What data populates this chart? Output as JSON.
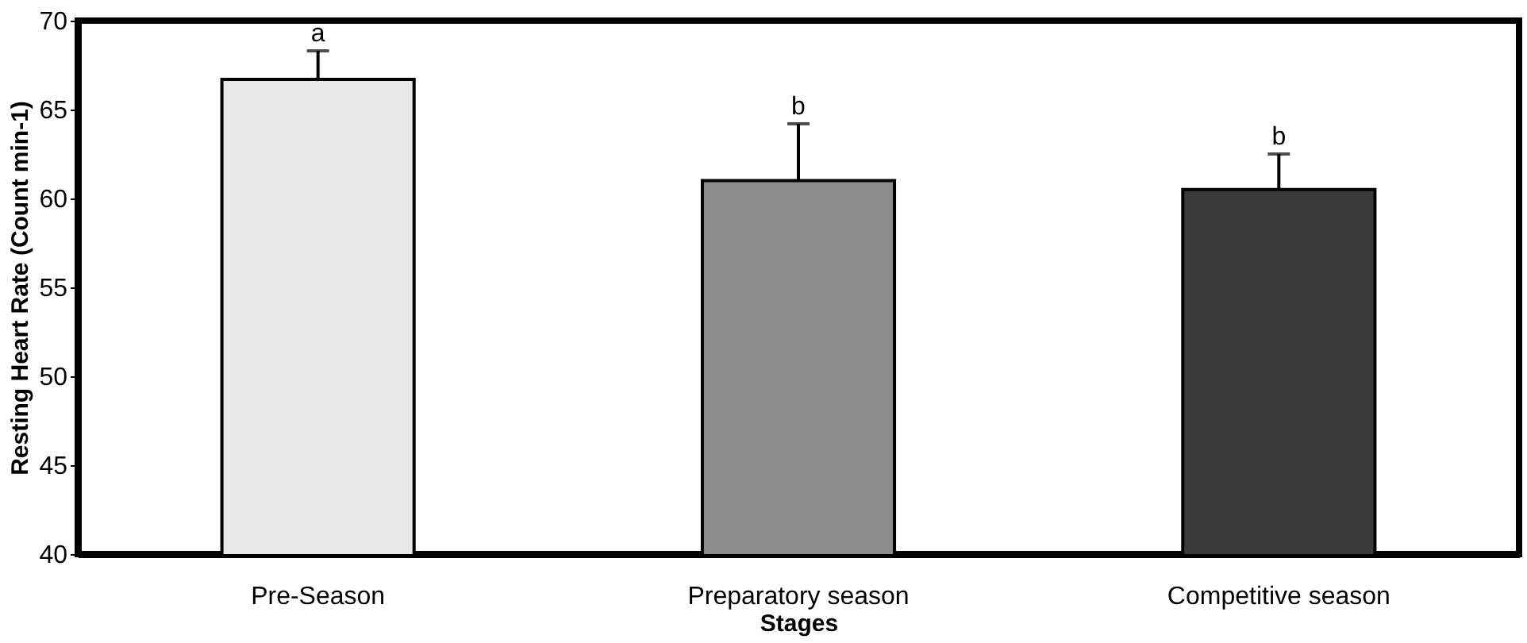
{
  "chart_data": {
    "type": "bar",
    "xlabel": "Stages",
    "ylabel": "Resting Heart Rate (Count min-1)",
    "categories": [
      "Pre-Season",
      "Preparatory season",
      "Competitive season"
    ],
    "values": [
      66.7,
      61.0,
      60.5
    ],
    "errors": [
      1.6,
      3.2,
      2.0
    ],
    "colors": [
      "#e8e8e8",
      "#8c8c8c",
      "#3a3a3a"
    ],
    "ylim": [
      40,
      70
    ],
    "yticks": [
      40,
      45,
      50,
      55,
      60,
      65,
      70
    ],
    "grid": false,
    "annotations": [
      "a",
      "b",
      "b"
    ]
  }
}
